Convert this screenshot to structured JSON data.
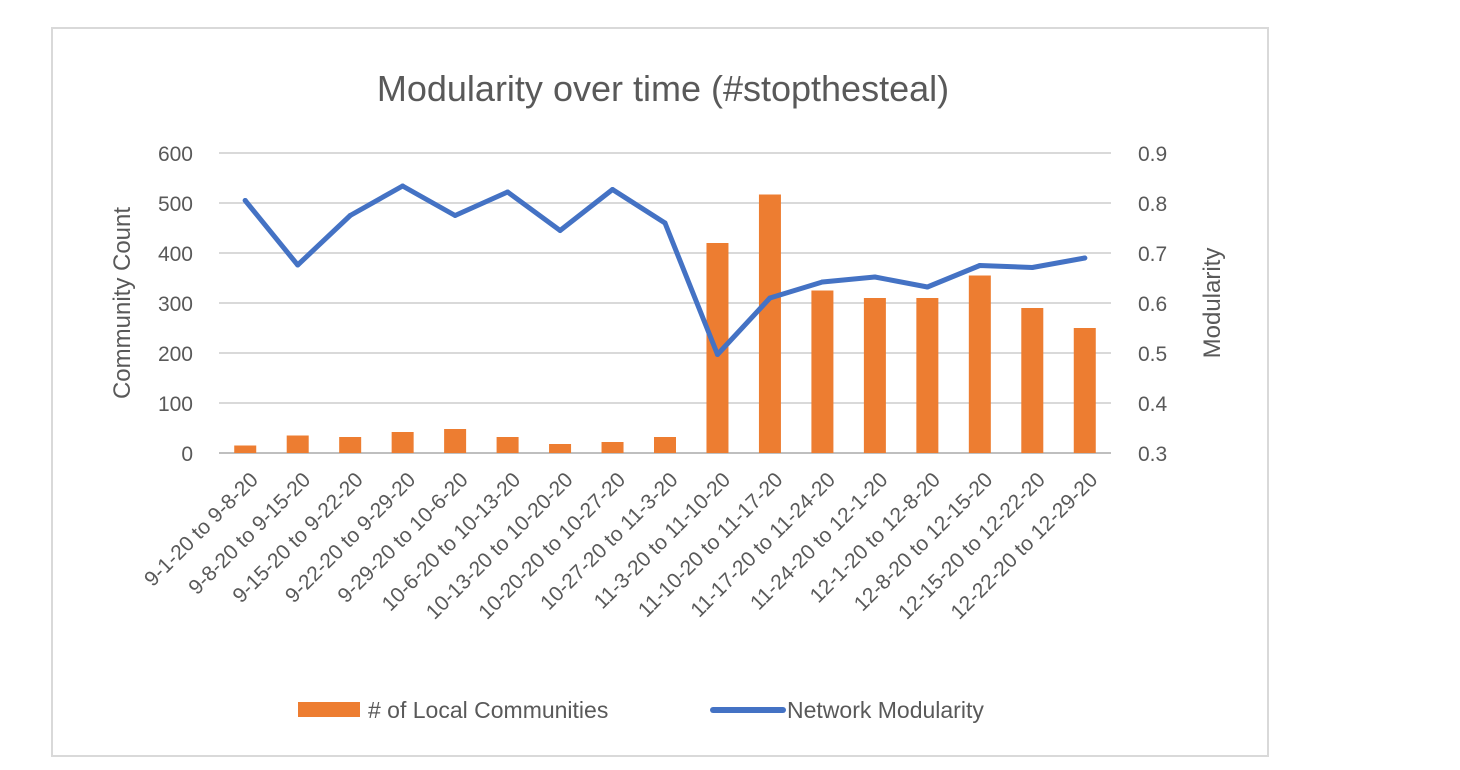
{
  "chart_data": {
    "type": "bar+line",
    "title": "Modularity over time (#stopthesteal)",
    "categories": [
      "9-1-20 to 9-8-20",
      "9-8-20 to 9-15-20",
      "9-15-20 to 9-22-20",
      "9-22-20 to 9-29-20",
      "9-29-20 to 10-6-20",
      "10-6-20 to 10-13-20",
      "10-13-20 to 10-20-20",
      "10-20-20 to 10-27-20",
      "10-27-20 to 11-3-20",
      "11-3-20 to 11-10-20",
      "11-10-20 to 11-17-20",
      "11-17-20 to 11-24-20",
      "11-24-20 to 12-1-20",
      "12-1-20 to 12-8-20",
      "12-8-20 to 12-15-20",
      "12-15-20 to 12-22-20",
      "12-22-20 to 12-29-20"
    ],
    "series": [
      {
        "name": "# of Local Communities",
        "kind": "bar",
        "axis": "left",
        "color": "#ed7d31",
        "values": [
          15,
          35,
          32,
          42,
          48,
          32,
          18,
          22,
          32,
          420,
          517,
          325,
          310,
          310,
          355,
          290,
          250
        ]
      },
      {
        "name": "Network Modularity",
        "kind": "line",
        "axis": "right",
        "color": "#4472c4",
        "values": [
          0.805,
          0.676,
          0.775,
          0.834,
          0.775,
          0.822,
          0.745,
          0.827,
          0.76,
          0.497,
          0.61,
          0.642,
          0.652,
          0.632,
          0.675,
          0.671,
          0.69
        ]
      }
    ],
    "y_left": {
      "label": "Community Count",
      "min": 0,
      "max": 600,
      "ticks": [
        "0",
        "100",
        "200",
        "300",
        "400",
        "500",
        "600"
      ]
    },
    "y_right": {
      "label": "Modularity",
      "min": 0.3,
      "max": 0.9,
      "ticks": [
        "0.3",
        "0.4",
        "0.5",
        "0.6",
        "0.7",
        "0.8",
        "0.9"
      ]
    },
    "grid": true,
    "legend": "bottom"
  }
}
